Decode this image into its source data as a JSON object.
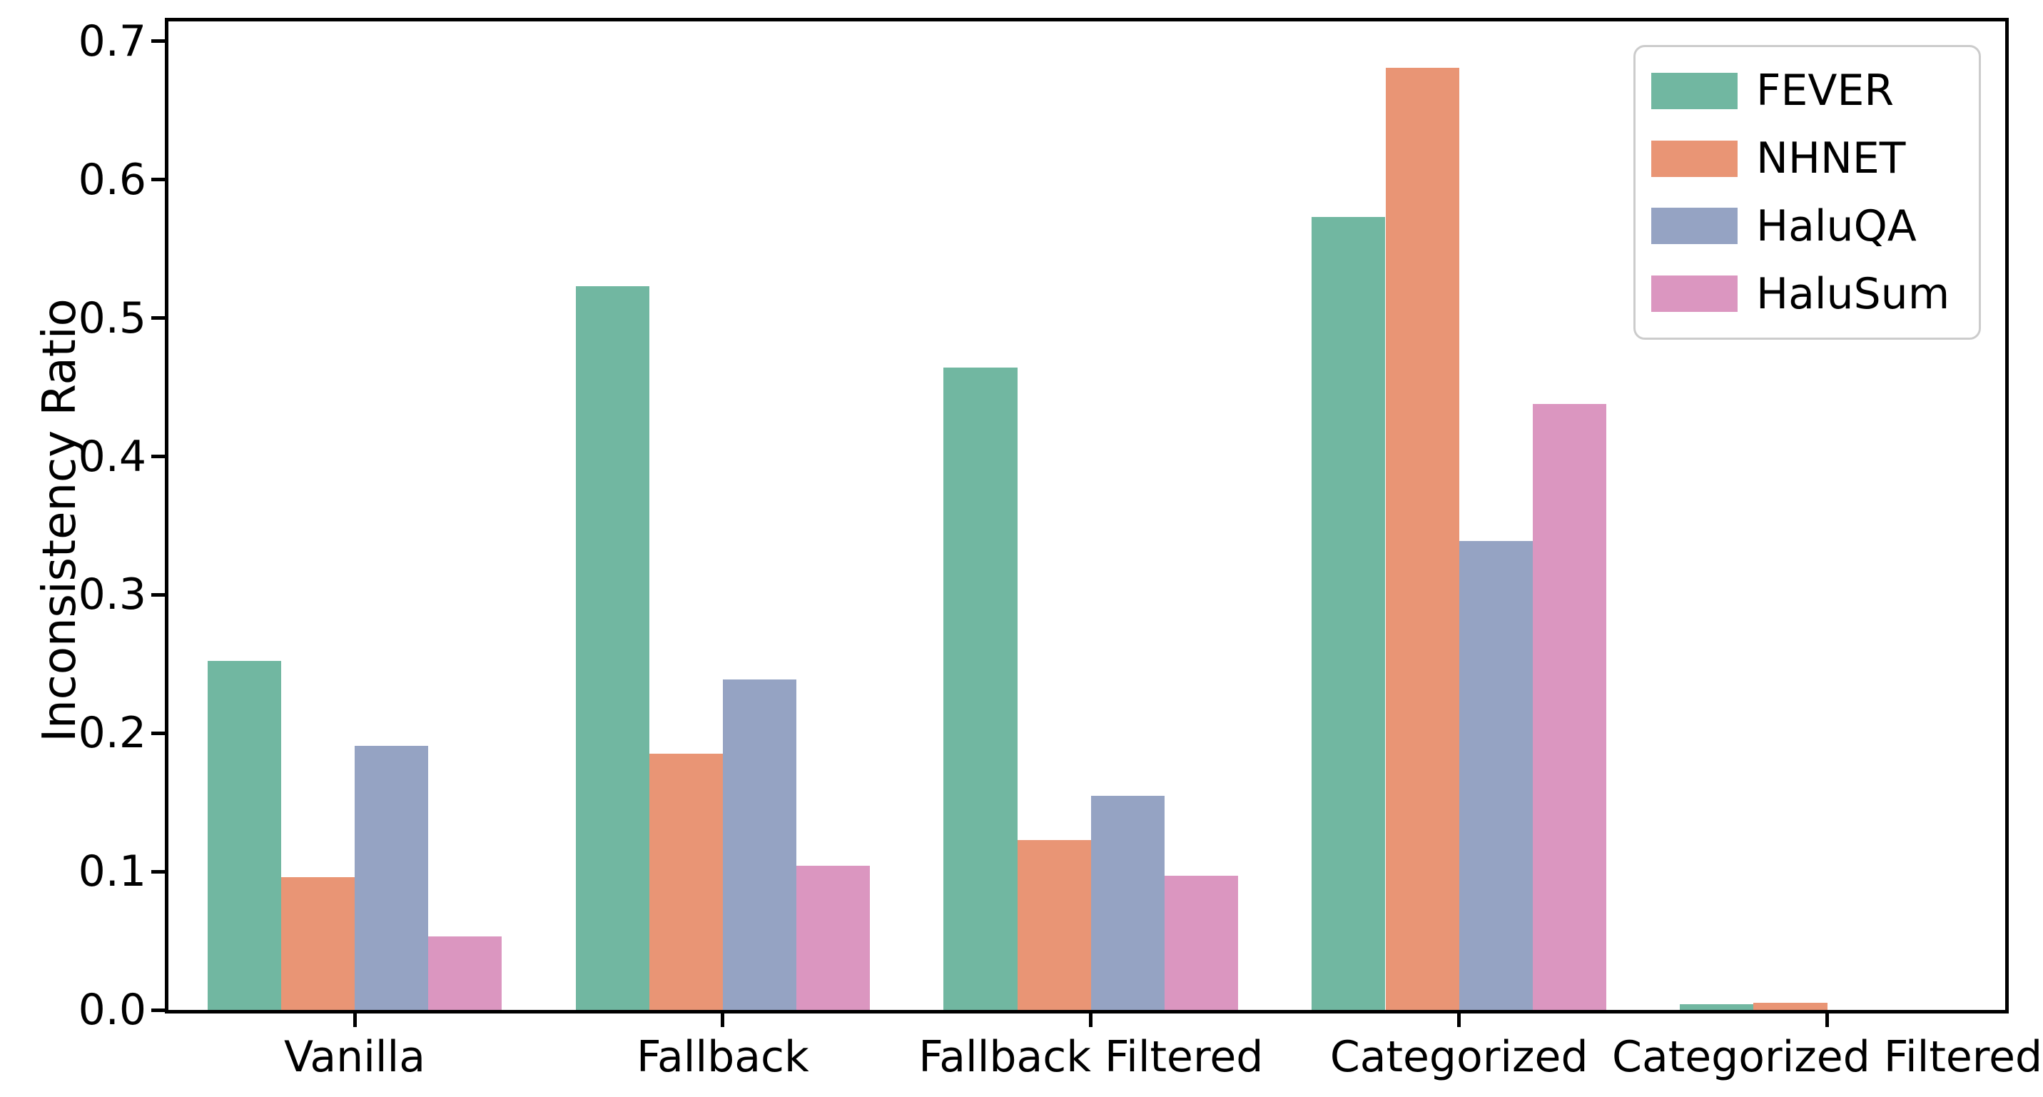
{
  "figure": {
    "background": "#ffffff",
    "frame_color": "#000000",
    "legend_border_color": "#cccccc"
  },
  "chart_data": {
    "type": "bar",
    "title": "",
    "xlabel": "",
    "ylabel": "Inconsistency Ratio",
    "categories": [
      "Vanilla",
      "Fallback",
      "Fallback Filtered",
      "Categorized",
      "Categorized Filtered"
    ],
    "series": [
      {
        "name": "FEVER",
        "color": "#71b7a1",
        "values": [
          0.252,
          0.523,
          0.464,
          0.573,
          0.004
        ]
      },
      {
        "name": "NHNET",
        "color": "#e99575",
        "values": [
          0.096,
          0.185,
          0.123,
          0.681,
          0.005
        ]
      },
      {
        "name": "HaluQA",
        "color": "#95a3c3",
        "values": [
          0.191,
          0.239,
          0.155,
          0.339,
          0.0
        ]
      },
      {
        "name": "HaluSum",
        "color": "#db96c0",
        "values": [
          0.053,
          0.104,
          0.097,
          0.438,
          0.0
        ]
      }
    ],
    "ylim": [
      0,
      0.716
    ],
    "yticks": [
      "0.0",
      "0.1",
      "0.2",
      "0.3",
      "0.4",
      "0.5",
      "0.6",
      "0.7"
    ],
    "grid": false,
    "legend_position": "upper right",
    "legend_entries": [
      "FEVER",
      "NHNET",
      "HaluQA",
      "HaluSum"
    ]
  }
}
